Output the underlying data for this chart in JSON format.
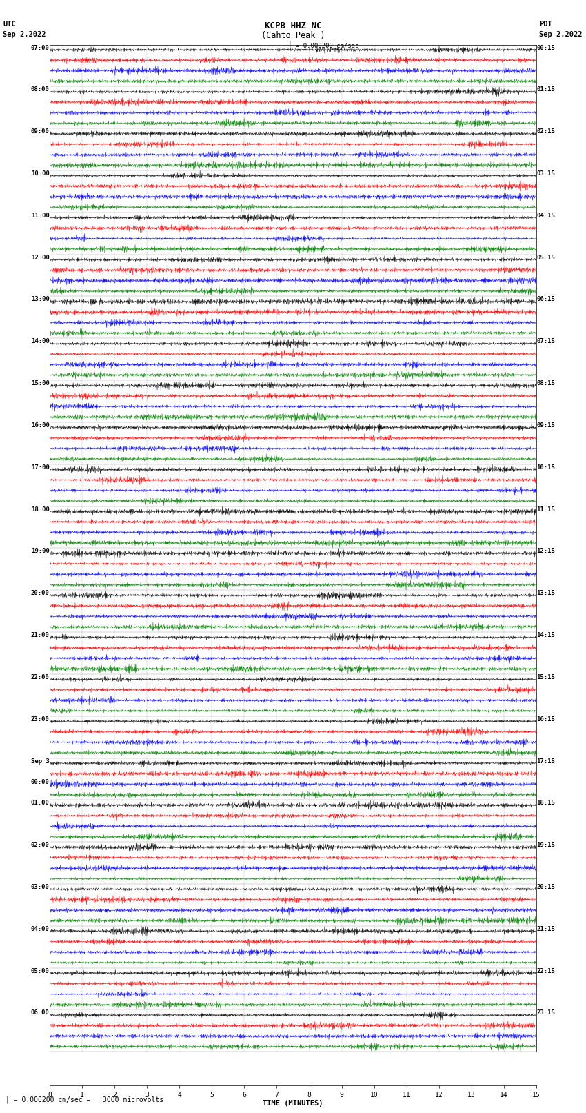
{
  "title": "KCPB HHZ NC",
  "subtitle": "(Cahto Peak )",
  "left_header": "UTC",
  "left_subheader": "Sep 2,2022",
  "right_header": "PDT",
  "right_subheader": "Sep 2,2022",
  "scale_label": "| = 0.000200 cm/sec =   3000 microvolts",
  "xlabel": "TIME (MINUTES)",
  "xlabel_ticks": [
    0,
    1,
    2,
    3,
    4,
    5,
    6,
    7,
    8,
    9,
    10,
    11,
    12,
    13,
    14,
    15
  ],
  "utc_times": [
    "07:00",
    "08:00",
    "09:00",
    "10:00",
    "11:00",
    "12:00",
    "13:00",
    "14:00",
    "15:00",
    "16:00",
    "17:00",
    "18:00",
    "19:00",
    "20:00",
    "21:00",
    "22:00",
    "23:00",
    "00:00",
    "01:00",
    "02:00",
    "03:00",
    "04:00",
    "05:00",
    "06:00"
  ],
  "pdt_times": [
    "00:15",
    "01:15",
    "02:15",
    "03:15",
    "04:15",
    "05:15",
    "06:15",
    "07:15",
    "08:15",
    "09:15",
    "10:15",
    "11:15",
    "12:15",
    "13:15",
    "14:15",
    "15:15",
    "16:15",
    "17:15",
    "18:15",
    "19:15",
    "20:15",
    "21:15",
    "22:15",
    "23:15"
  ],
  "trace_colors": [
    "black",
    "red",
    "blue",
    "green"
  ],
  "n_rows": 24,
  "n_traces_per_row": 4,
  "minutes": 15,
  "samples_per_minute": 100,
  "bg_color": "white",
  "title_fontsize": 9,
  "label_fontsize": 7.5,
  "tick_fontsize": 7,
  "big_event_row": 10,
  "big_event2_row": 11,
  "sep3_row": 17
}
